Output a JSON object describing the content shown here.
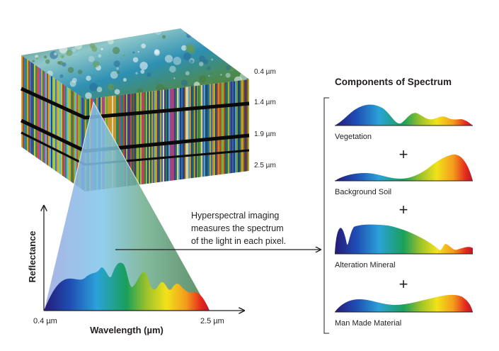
{
  "cube": {
    "band_labels": [
      "0.4 µm",
      "1.4 µm",
      "1.9 µm",
      "2.5 µm"
    ]
  },
  "spectrum_plot": {
    "y_axis_label": "Reflectance",
    "x_axis_label": "Wavelength (µm)",
    "x_min_label": "0.4 µm",
    "x_max_label": "2.5 µm"
  },
  "description": {
    "lines": [
      "Hyperspectral imaging",
      "measures the spectrum",
      "of the light in each pixel."
    ]
  },
  "components": {
    "title": "Components of Spectrum",
    "plus_symbol": "+",
    "items": [
      {
        "label": "Vegetation"
      },
      {
        "label": "Background Soil"
      },
      {
        "label": "Alteration Mineral"
      },
      {
        "label": "Man Made Material"
      }
    ]
  },
  "colors": {
    "spectrum": [
      "#241a78",
      "#1f4fb4",
      "#2aa2d8",
      "#1aa05a",
      "#9cc22a",
      "#f2e21a",
      "#f39a1c",
      "#e4281e",
      "#b51a2a"
    ],
    "cone_left": "#9aa6df",
    "cone_mid": "#7ec5ea",
    "cone_right": "#3f7a4a",
    "axis": "#231f20"
  }
}
